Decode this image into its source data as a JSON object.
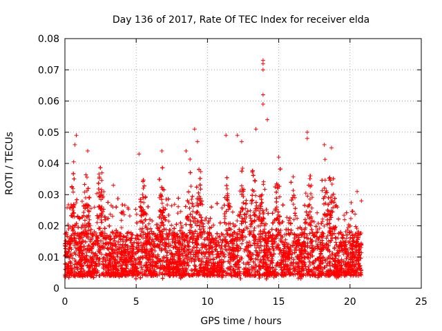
{
  "chart_data": {
    "type": "scatter",
    "title": "Day 136 of 2017, Rate Of TEC Index for receiver elda",
    "xlabel": "GPS time / hours",
    "ylabel": "ROTI / TECUs",
    "xlim": [
      0,
      25
    ],
    "ylim": [
      0,
      0.08
    ],
    "xticks": [
      0,
      5,
      10,
      15,
      20,
      25
    ],
    "yticks": [
      0,
      0.01,
      0.02,
      0.03,
      0.04,
      0.05,
      0.06,
      0.07,
      0.08
    ],
    "xtick_labels": [
      "0",
      "5",
      "10",
      "15",
      "20",
      "25"
    ],
    "ytick_labels": [
      "0",
      "0.01",
      "0.02",
      "0.03",
      "0.04",
      "0.05",
      "0.06",
      "0.07",
      "0.08"
    ],
    "grid": true,
    "marker": "plus",
    "color": "#ff0000",
    "x_range_of_data": [
      0,
      20.8
    ],
    "typical_range": [
      0.005,
      0.02
    ],
    "outliers": [
      {
        "x": 0.8,
        "y": 0.049
      },
      {
        "x": 0.7,
        "y": 0.046
      },
      {
        "x": 1.6,
        "y": 0.044
      },
      {
        "x": 2.6,
        "y": 0.037
      },
      {
        "x": 3.4,
        "y": 0.033
      },
      {
        "x": 5.2,
        "y": 0.043
      },
      {
        "x": 6.8,
        "y": 0.044
      },
      {
        "x": 8.5,
        "y": 0.044
      },
      {
        "x": 9.1,
        "y": 0.051
      },
      {
        "x": 9.3,
        "y": 0.047
      },
      {
        "x": 11.3,
        "y": 0.049
      },
      {
        "x": 12.1,
        "y": 0.049
      },
      {
        "x": 12.4,
        "y": 0.047
      },
      {
        "x": 13.4,
        "y": 0.051
      },
      {
        "x": 13.9,
        "y": 0.073
      },
      {
        "x": 13.9,
        "y": 0.072
      },
      {
        "x": 13.9,
        "y": 0.07
      },
      {
        "x": 13.9,
        "y": 0.062
      },
      {
        "x": 13.9,
        "y": 0.059
      },
      {
        "x": 14.2,
        "y": 0.054
      },
      {
        "x": 15.0,
        "y": 0.042
      },
      {
        "x": 17.0,
        "y": 0.05
      },
      {
        "x": 17.0,
        "y": 0.048
      },
      {
        "x": 18.2,
        "y": 0.046
      },
      {
        "x": 18.7,
        "y": 0.045
      },
      {
        "x": 20.5,
        "y": 0.031
      },
      {
        "x": 20.8,
        "y": 0.028
      }
    ]
  }
}
